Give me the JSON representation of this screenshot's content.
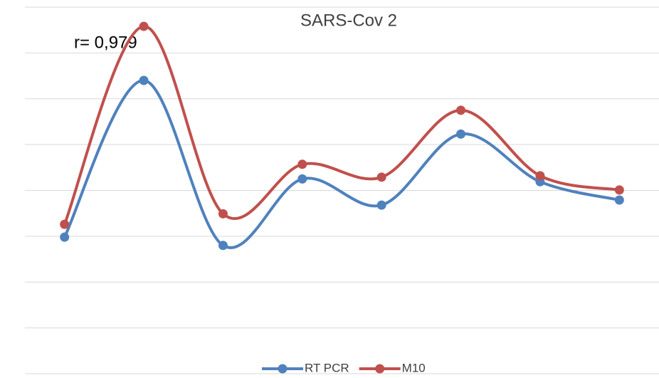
{
  "chart_data": {
    "type": "line",
    "title": "SARS-Cov 2",
    "annotation": "r= 0,979",
    "categories": [
      null,
      null,
      null,
      null,
      null,
      null,
      null,
      null
    ],
    "series": [
      {
        "name": "RT PCR",
        "color": "#4f81bd",
        "values": [
          2.98,
          6.4,
          2.8,
          4.25,
          3.68,
          5.23,
          4.19,
          3.79
        ]
      },
      {
        "name": "M10",
        "color": "#c0504d",
        "values": [
          3.26,
          7.58,
          3.49,
          4.57,
          4.29,
          5.75,
          4.32,
          4.01
        ]
      }
    ],
    "ylim": [
      0,
      8
    ],
    "yticks": [
      0,
      1,
      2,
      3,
      4,
      5,
      6,
      7,
      8
    ],
    "grid": true,
    "smooth": true,
    "legend": "bottom"
  }
}
